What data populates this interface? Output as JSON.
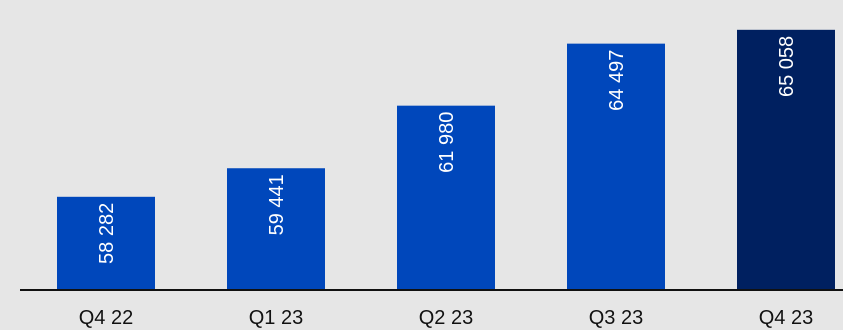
{
  "colors": {
    "background": "#e6e6e6",
    "bar": "#0047bb",
    "bar_highlight": "#002060",
    "axis": "#111111",
    "label": "#ffffff",
    "tick": "#111111"
  },
  "chart_data": {
    "type": "bar",
    "title": "",
    "xlabel": "",
    "ylabel": "",
    "categories": [
      "Q4 22",
      "Q1 23",
      "Q2 23",
      "Q3 23",
      "Q4 23"
    ],
    "values": [
      58282,
      59441,
      61980,
      64497,
      65058
    ],
    "value_labels": [
      "58 282",
      "59 441",
      "61 980",
      "64 497",
      "65 058"
    ],
    "highlight_index": 4,
    "ylim": [
      54500,
      65700
    ],
    "grid": false,
    "legend": "none",
    "label_orientation": "vertical"
  }
}
